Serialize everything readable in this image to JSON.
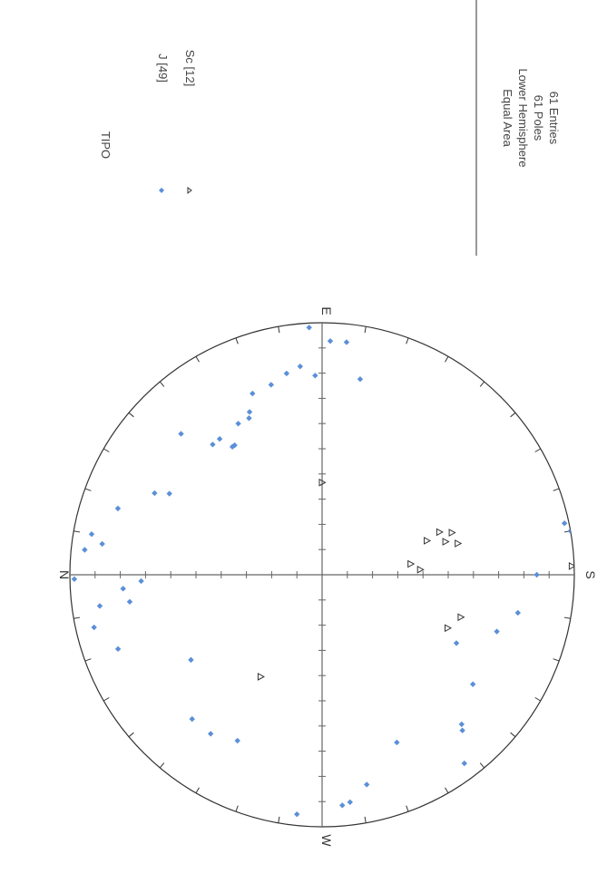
{
  "stereonet": {
    "compass": {
      "n": "N",
      "e": "E",
      "s": "S",
      "w": "W"
    },
    "legend": {
      "title": "TIPO",
      "entries": [
        {
          "label": "J [49]",
          "symbol": "diamond",
          "color": "#5b8fd8"
        },
        {
          "label": "Sc [12]",
          "symbol": "triangle",
          "color": "#333333"
        }
      ]
    },
    "info": [
      "Equal Area",
      "Lower Hemisphere",
      "61 Poles",
      "61 Entries"
    ]
  },
  "chart_data": {
    "type": "scatter",
    "projection": "equal-area, lower hemisphere",
    "units": "trend (deg), plunge (deg)",
    "series": [
      {
        "name": "J [49]",
        "color": "#5b8fd8",
        "marker": "diamond",
        "points": [
          [
            359,
            2
          ],
          [
            347,
            8
          ],
          [
            352,
            12
          ],
          [
            6,
            6
          ],
          [
            10,
            8
          ],
          [
            8,
            13
          ],
          [
            340,
            15
          ],
          [
            356,
            22
          ],
          [
            352,
            24
          ],
          [
            358,
            29
          ],
          [
            18,
            16
          ],
          [
            26,
            27
          ],
          [
            28,
            32
          ],
          [
            327,
            38
          ],
          [
            45,
            22
          ],
          [
            53,
            33
          ],
          [
            50,
            33
          ],
          [
            55,
            38
          ],
          [
            56,
            38
          ],
          [
            61,
            32
          ],
          [
            65,
            32
          ],
          [
            66,
            30
          ],
          [
            69,
            24
          ],
          [
            75,
            23
          ],
          [
            80,
            20
          ],
          [
            84,
            18
          ],
          [
            88,
            22
          ],
          [
            87,
            2
          ],
          [
            92,
            8
          ],
          [
            96,
            8
          ],
          [
            101,
            22
          ],
          [
            191,
            22
          ],
          [
            180,
            16
          ],
          [
            170,
            0
          ],
          [
            168,
            2
          ],
          [
            198,
            28
          ],
          [
            207,
            40
          ],
          [
            216,
            27
          ],
          [
            227,
            20
          ],
          [
            228,
            18
          ],
          [
            233,
            7
          ],
          [
            246,
            28
          ],
          [
            263,
            10
          ],
          [
            258,
            16
          ],
          [
            265,
            9
          ],
          [
            276,
            5
          ],
          [
            297,
            27
          ],
          [
            305,
            24
          ],
          [
            312,
            24
          ]
        ]
      },
      {
        "name": "Sc [12]",
        "color": "#333333",
        "marker": "triangle",
        "points": [
          [
            301,
            51
          ],
          [
            90,
            60
          ],
          [
            177,
            58
          ],
          [
            173,
            61
          ],
          [
            165,
            48
          ],
          [
            167,
            44
          ],
          [
            162,
            45
          ],
          [
            162,
            54
          ],
          [
            160,
            49
          ],
          [
            203,
            45
          ],
          [
            197,
            42
          ],
          [
            178,
            1
          ]
        ]
      }
    ]
  }
}
